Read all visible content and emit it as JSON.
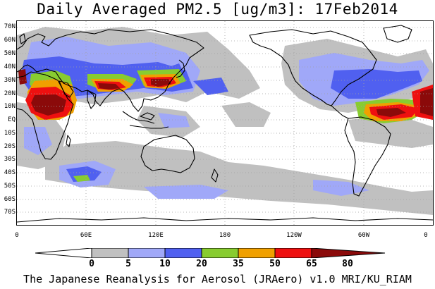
{
  "title": "Daily Averaged PM2.5 [ug/m3]: 17Feb2014",
  "footer": "The Japanese Reanalysis for Aerosol (JRAero) v1.0 MRI/KU_RIAM",
  "lat_labels": [
    "70N",
    "60N",
    "50N",
    "40N",
    "30N",
    "20N",
    "10N",
    "EQ",
    "10S",
    "20S",
    "30S",
    "40S",
    "50S",
    "60S",
    "70S"
  ],
  "lon_labels": [
    "0",
    "60E",
    "120E",
    "180",
    "120W",
    "60W",
    "0"
  ],
  "colorbar": {
    "levels": [
      "0",
      "5",
      "10",
      "20",
      "35",
      "50",
      "65",
      "80"
    ],
    "colors": [
      "#ffffff",
      "#c0c0c0",
      "#a0a8f8",
      "#5060f0",
      "#88cc30",
      "#f0a000",
      "#ee1010",
      "#8b0a0a"
    ],
    "outline": "#000000"
  },
  "map": {
    "ocean_color": "#ffffff",
    "coastline_color": "#000000",
    "grid_color": "#a0a0a0"
  }
}
